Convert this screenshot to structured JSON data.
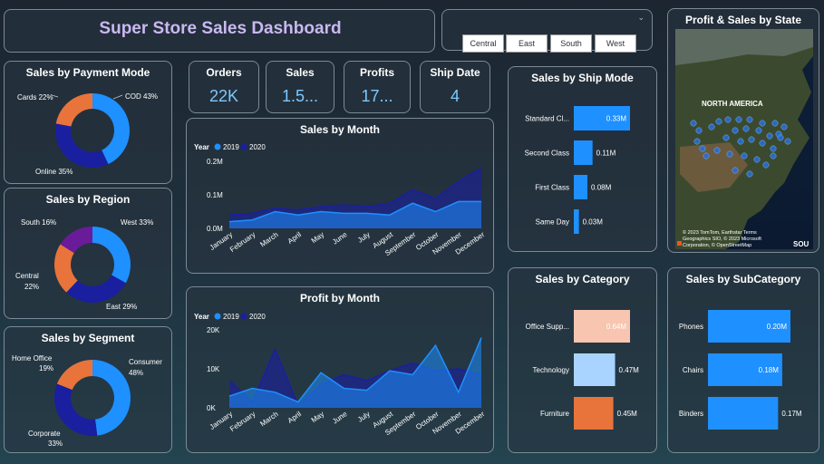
{
  "title": "Super Store Sales Dashboard",
  "slicer": {
    "options": [
      "Central",
      "East",
      "South",
      "West"
    ]
  },
  "kpis": [
    {
      "label": "Orders",
      "value": "22K"
    },
    {
      "label": "Sales",
      "value": "1.5..."
    },
    {
      "label": "Profits",
      "value": "17..."
    },
    {
      "label": "Ship Date",
      "value": "4"
    }
  ],
  "colors": {
    "c2019": "#1e90ff",
    "c2020": "#1a1fa0",
    "orange": "#e8743b",
    "purple": "#6a1b9a",
    "cat1": "#f7c5b0",
    "cat2": "#a9d4ff",
    "cat3": "#e8743b",
    "bar": "#1e90ff"
  },
  "payment": {
    "title": "Sales by Payment Mode",
    "labels": [
      "COD 43%",
      "Online 35%",
      "Cards 22%"
    ]
  },
  "region": {
    "title": "Sales by Region",
    "labels": [
      "West 33%",
      "East 29%",
      "Central",
      "22%",
      "South 16%"
    ]
  },
  "segment": {
    "title": "Sales by Segment",
    "labels": [
      "Consumer",
      "48%",
      "Corporate",
      "33%",
      "Home Office",
      "19%"
    ]
  },
  "month_sales": {
    "title": "Sales by Month",
    "legend_title": "Year",
    "legend": [
      "2019",
      "2020"
    ]
  },
  "month_profit": {
    "title": "Profit by Month",
    "legend_title": "Year",
    "legend": [
      "2019",
      "2020"
    ]
  },
  "shipmode": {
    "title": "Sales by Ship Mode"
  },
  "category": {
    "title": "Sales by Category"
  },
  "subcategory": {
    "title": "Sales by SubCategory"
  },
  "map": {
    "title": "Profit & Sales by State",
    "region_label": "NORTH AMERICA",
    "copyright1": "© 2023 TomTom, Earthstar Terms",
    "copyright2": "Geographics SIO, © 2023 Microsoft",
    "copyright3": "Corporation, © OpenStreetMap",
    "corner": "SOU"
  },
  "chart_data": [
    {
      "type": "pie",
      "title": "Sales by Payment Mode",
      "labels": [
        "COD",
        "Online",
        "Cards"
      ],
      "values": [
        43,
        35,
        22
      ]
    },
    {
      "type": "pie",
      "title": "Sales by Region",
      "labels": [
        "West",
        "East",
        "Central",
        "South"
      ],
      "values": [
        33,
        29,
        22,
        16
      ]
    },
    {
      "type": "pie",
      "title": "Sales by Segment",
      "labels": [
        "Consumer",
        "Corporate",
        "Home Office"
      ],
      "values": [
        48,
        33,
        19
      ]
    },
    {
      "type": "area",
      "title": "Sales by Month",
      "categories": [
        "January",
        "February",
        "March",
        "April",
        "May",
        "June",
        "July",
        "August",
        "September",
        "October",
        "November",
        "December"
      ],
      "series": [
        {
          "name": "2019",
          "values": [
            0.02,
            0.025,
            0.05,
            0.04,
            0.05,
            0.045,
            0.045,
            0.04,
            0.075,
            0.05,
            0.08,
            0.08
          ]
        },
        {
          "name": "2020",
          "values": [
            0.04,
            0.045,
            0.06,
            0.055,
            0.065,
            0.07,
            0.065,
            0.075,
            0.115,
            0.09,
            0.14,
            0.18
          ]
        }
      ],
      "yticks": [
        "0.0M",
        "0.1M",
        "0.2M"
      ],
      "ylim": [
        0,
        0.2
      ]
    },
    {
      "type": "area",
      "title": "Profit by Month",
      "categories": [
        "January",
        "February",
        "March",
        "April",
        "May",
        "June",
        "July",
        "August",
        "September",
        "October",
        "November",
        "December"
      ],
      "series": [
        {
          "name": "2019",
          "values": [
            3000,
            5000,
            4000,
            1500,
            9000,
            5000,
            4500,
            9500,
            8500,
            16000,
            4000,
            18000
          ]
        },
        {
          "name": "2020",
          "values": [
            7000,
            1500,
            15000,
            600,
            6000,
            8500,
            7000,
            9500,
            11500,
            9500,
            10000,
            8500
          ]
        }
      ],
      "yticks": [
        "0K",
        "10K",
        "20K"
      ],
      "ylim": [
        0,
        20000
      ]
    },
    {
      "type": "bar",
      "title": "Sales by Ship Mode",
      "categories": [
        "Standard Cl...",
        "Second Class",
        "First Class",
        "Same Day"
      ],
      "values": [
        0.33,
        0.11,
        0.08,
        0.03
      ],
      "value_labels": [
        "0.33M",
        "0.11M",
        "0.08M",
        "0.03M"
      ]
    },
    {
      "type": "bar",
      "title": "Sales by Category",
      "categories": [
        "Office Supp...",
        "Technology",
        "Furniture"
      ],
      "values": [
        0.64,
        0.47,
        0.45
      ],
      "value_labels": [
        "0.64M",
        "0.47M",
        "0.45M"
      ]
    },
    {
      "type": "bar",
      "title": "Sales by SubCategory",
      "categories": [
        "Phones",
        "Chairs",
        "Binders"
      ],
      "values": [
        0.2,
        0.18,
        0.17
      ],
      "value_labels": [
        "0.20M",
        "0.18M",
        "0.17M"
      ]
    }
  ]
}
